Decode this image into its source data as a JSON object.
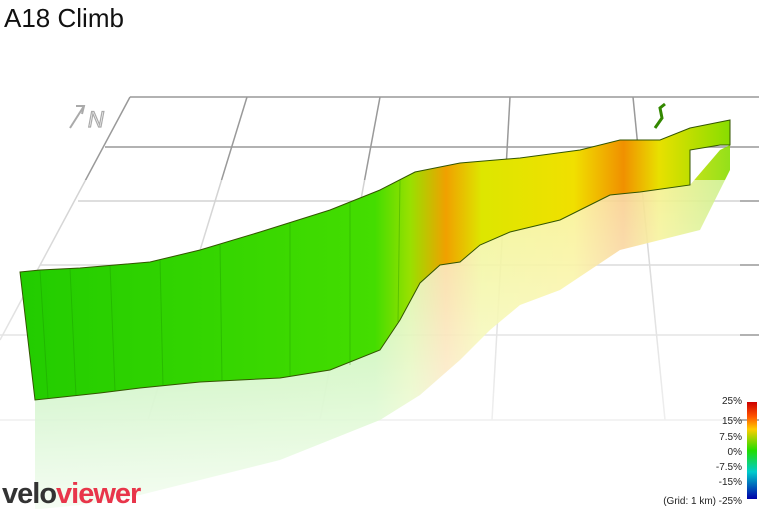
{
  "header": {
    "title": "A18 Climb"
  },
  "compass": {
    "label": "N"
  },
  "legend": {
    "labels": [
      "25%",
      "15%",
      "7.5%",
      "0%",
      "-7.5%",
      "-15%",
      "-25%"
    ],
    "grid_note": "(Grid: 1 km)"
  },
  "logo": {
    "part1": "velo",
    "part2": "viewer"
  }
}
